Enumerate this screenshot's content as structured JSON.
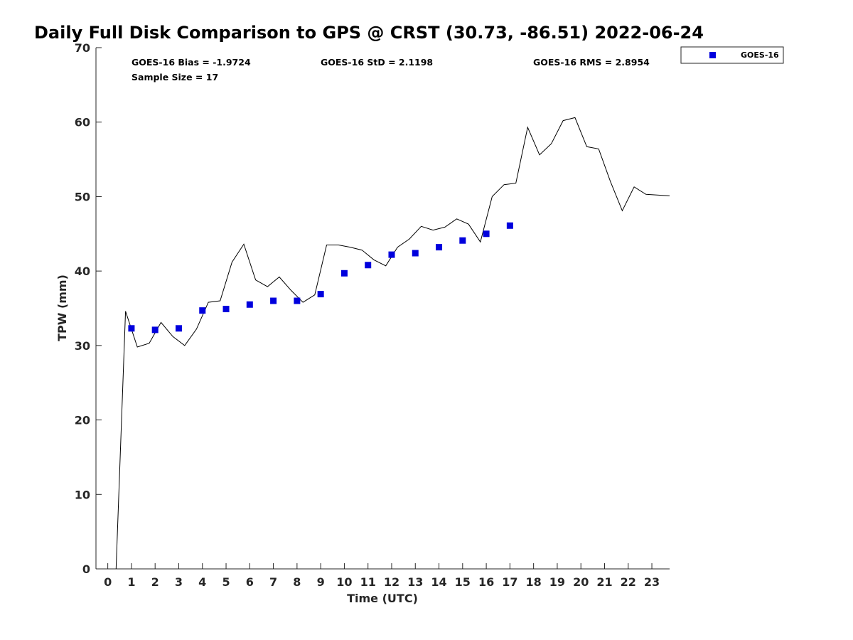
{
  "chart_data": {
    "type": "scatter",
    "title": "Daily Full Disk Comparison to GPS @ CRST (30.73, -86.51) 2022-06-24",
    "xlabel": "Time (UTC)",
    "ylabel": "TPW (mm)",
    "xlim": [
      -0.5,
      23.75
    ],
    "ylim": [
      0,
      70
    ],
    "xticks": [
      0,
      1,
      2,
      3,
      4,
      5,
      6,
      7,
      8,
      9,
      10,
      11,
      12,
      13,
      14,
      15,
      16,
      17,
      18,
      19,
      20,
      21,
      22,
      23
    ],
    "yticks": [
      0,
      10,
      20,
      30,
      40,
      50,
      60,
      70
    ],
    "grid": false,
    "legend_position": "outside-top-right",
    "stats": {
      "bias": "GOES-16 Bias = -1.9724",
      "std": "GOES-16 StD = 2.1198",
      "rms": "GOES-16 RMS = 2.8954",
      "sample_size": "Sample Size = 17"
    },
    "series": [
      {
        "name": "GOES-16",
        "kind": "scatter",
        "marker": "square",
        "color": "#0000dd",
        "x": [
          1,
          2,
          3,
          4,
          5,
          6,
          7,
          8,
          9,
          10,
          11,
          12,
          13,
          14,
          15,
          16,
          17
        ],
        "y": [
          32.3,
          32.1,
          32.3,
          34.7,
          34.9,
          35.5,
          36.0,
          36.0,
          36.9,
          39.7,
          40.8,
          42.2,
          42.4,
          43.2,
          44.1,
          45.0,
          46.1
        ]
      },
      {
        "kind": "line",
        "color": "#000000",
        "x": [
          0.35,
          0.75,
          1.25,
          1.75,
          2.25,
          2.75,
          3.25,
          3.75,
          4.25,
          4.75,
          5.25,
          5.75,
          6.25,
          6.75,
          7.25,
          7.75,
          8.25,
          8.75,
          9.25,
          9.75,
          10.25,
          10.75,
          11.25,
          11.75,
          12.25,
          12.75,
          13.25,
          13.75,
          14.25,
          14.75,
          15.25,
          15.75,
          16.25,
          16.75,
          17.25,
          17.75,
          18.25,
          18.75,
          19.25,
          19.75,
          20.25,
          20.75,
          21.25,
          21.75,
          22.25,
          22.75,
          23.75
        ],
        "y": [
          0,
          34.6,
          29.8,
          30.3,
          33.1,
          31.2,
          30.0,
          32.2,
          35.8,
          36.0,
          41.2,
          43.6,
          38.8,
          37.9,
          39.2,
          37.4,
          35.8,
          36.8,
          43.5,
          43.5,
          43.2,
          42.8,
          41.5,
          40.7,
          43.2,
          44.3,
          46.0,
          45.5,
          45.9,
          47.0,
          46.3,
          43.9,
          50.0,
          51.6,
          51.8,
          59.3,
          55.6,
          57.1,
          60.2,
          60.6,
          56.7,
          56.4,
          52.0,
          48.1,
          51.3,
          50.3,
          50.1
        ]
      }
    ]
  }
}
